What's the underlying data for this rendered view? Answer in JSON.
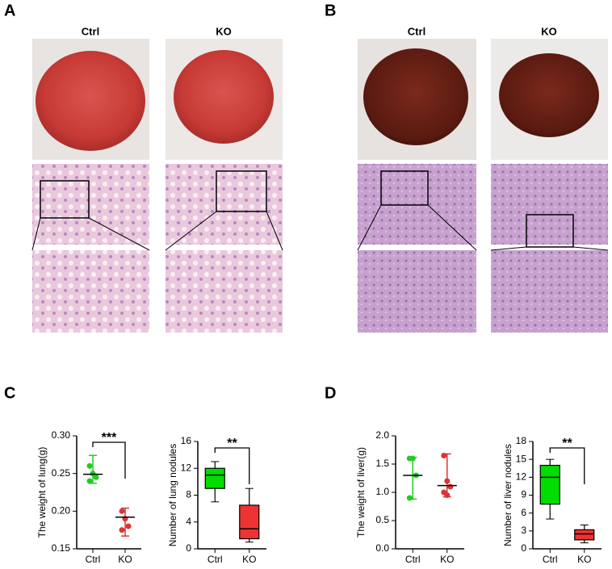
{
  "panels": [
    {
      "label": "A",
      "columns": [
        "Ctrl",
        "KO"
      ]
    },
    {
      "label": "B",
      "columns": [
        "Ctrl",
        "KO"
      ]
    },
    {
      "label": "C"
    },
    {
      "label": "D"
    }
  ],
  "chart_data": [
    {
      "type": "scatter",
      "ylabel": "The weight of lung(g)",
      "categories": [
        "Ctrl",
        "KO"
      ],
      "colors": [
        "#22cc22",
        "#dd3333"
      ],
      "points": [
        [
          0.26,
          0.25,
          0.245,
          0.24
        ],
        [
          0.2,
          0.19,
          0.18,
          0.175
        ]
      ],
      "center": [
        0.249,
        0.192
      ],
      "error": [
        [
          0.237,
          0.274
        ],
        [
          0.167,
          0.204
        ]
      ],
      "ylim": [
        0.15,
        0.3
      ],
      "yticks": [
        {
          "value": 0.15,
          "label": "0.15"
        },
        {
          "value": 0.2,
          "label": "0.20"
        },
        0.25,
        {
          "value": 0.3,
          "label": "0.30"
        }
      ],
      "annotation": "***"
    },
    {
      "type": "box",
      "ylabel": "Number of lung nodules",
      "categories": [
        "Ctrl",
        "KO"
      ],
      "colors": [
        "#00dd00",
        "#ee3333"
      ],
      "boxes": [
        {
          "min": 7,
          "q1": 9,
          "median": 11,
          "q3": 12,
          "max": 13
        },
        {
          "min": 1,
          "q1": 1.5,
          "median": 3,
          "q3": 6.5,
          "max": 9
        }
      ],
      "ylim": [
        0,
        16
      ],
      "yticks": [
        0,
        4,
        8,
        12,
        16
      ],
      "annotation": "**"
    },
    {
      "type": "scatter",
      "ylabel": "The weight of liver(g)",
      "categories": [
        "Ctrl",
        "KO"
      ],
      "colors": [
        "#22cc22",
        "#dd3333"
      ],
      "points": [
        [
          1.6,
          1.6,
          1.3,
          0.9
        ],
        [
          1.65,
          1.2,
          1.1,
          1.0,
          0.95
        ]
      ],
      "center": [
        1.3,
        1.12
      ],
      "error": [
        [
          0.88,
          1.62
        ],
        [
          0.92,
          1.68
        ]
      ],
      "ylim": [
        0,
        2
      ],
      "yticks": [
        {
          "value": 0,
          "label": "0.0"
        },
        0.5,
        {
          "value": 1,
          "label": "1.0"
        },
        1.5,
        {
          "value": 2,
          "label": "2.0"
        }
      ]
    },
    {
      "type": "box",
      "ylabel": "Number of liver nodules",
      "categories": [
        "Ctrl",
        "KO"
      ],
      "colors": [
        "#00dd00",
        "#ee3333"
      ],
      "boxes": [
        {
          "min": 5,
          "q1": 7.5,
          "median": 12,
          "q3": 14,
          "max": 15
        },
        {
          "min": 1,
          "q1": 1.5,
          "median": 2.5,
          "q3": 3.2,
          "max": 4
        }
      ],
      "ylim": [
        0,
        18
      ],
      "yticks": [
        0,
        3,
        6,
        9,
        12,
        15,
        18
      ],
      "annotation": "**"
    }
  ]
}
